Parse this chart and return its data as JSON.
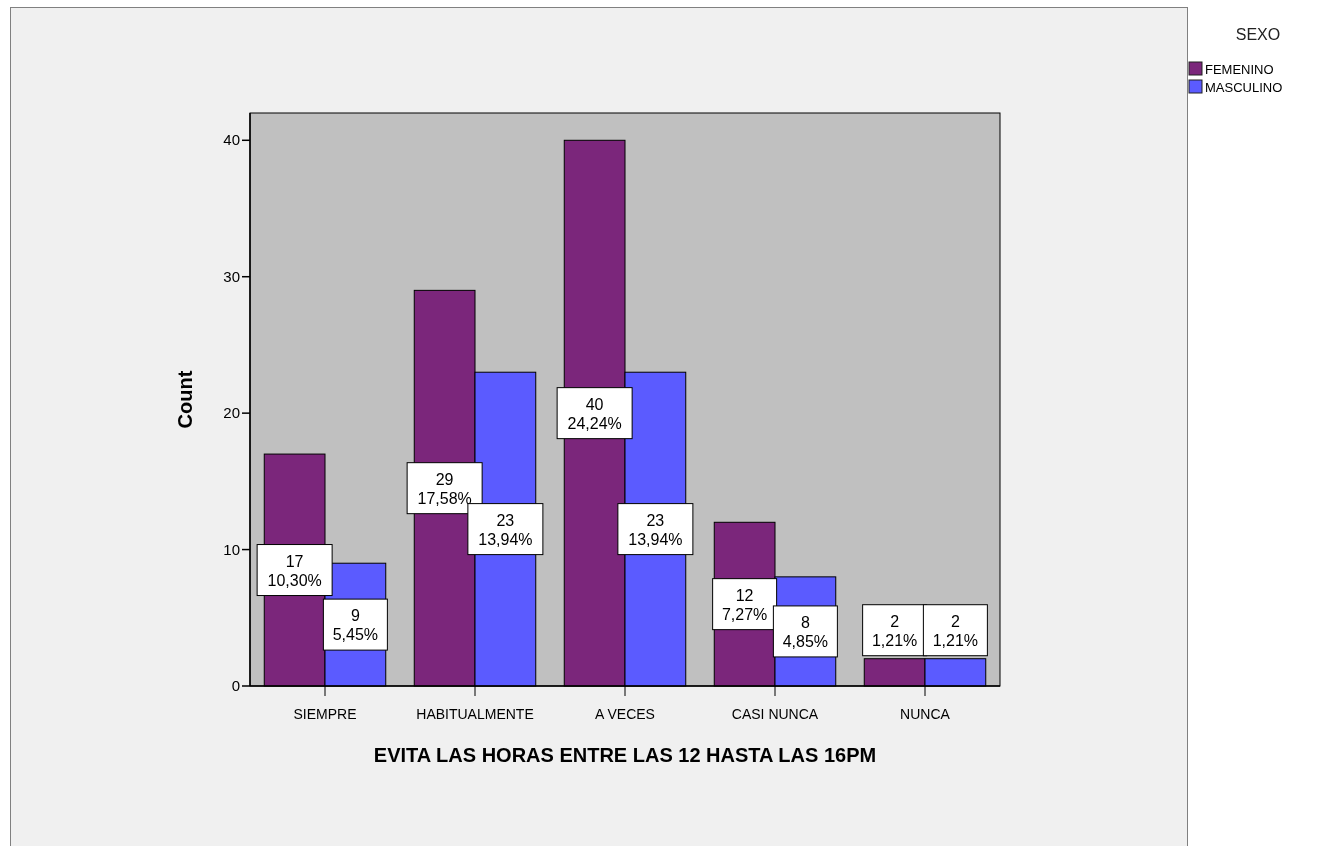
{
  "chart_data": {
    "type": "bar",
    "xlabel": "EVITA LAS HORAS ENTRE LAS 12 HASTA LAS 16PM",
    "ylabel": "Count",
    "legend_title": "SEXO",
    "categories": [
      "SIEMPRE",
      "HABITUALMENTE",
      "A VECES",
      "CASI NUNCA",
      "NUNCA"
    ],
    "series": [
      {
        "name": "FEMENINO",
        "color": "#7b267b",
        "values": [
          17,
          29,
          40,
          12,
          2
        ],
        "value_labels": [
          "17\n10,30%",
          "29\n17,58%",
          "40\n24,24%",
          "12\n7,27%",
          "2\n1,21%"
        ]
      },
      {
        "name": "MASCULINO",
        "color": "#5b5bff",
        "values": [
          9,
          23,
          23,
          8,
          2
        ],
        "value_labels": [
          "9\n5,45%",
          "23\n13,94%",
          "23\n13,94%",
          "8\n4,85%",
          "2\n1,21%"
        ]
      }
    ],
    "ylim": [
      0,
      42
    ],
    "yticks": [
      0,
      10,
      20,
      30,
      40
    ],
    "legend": "top right"
  }
}
